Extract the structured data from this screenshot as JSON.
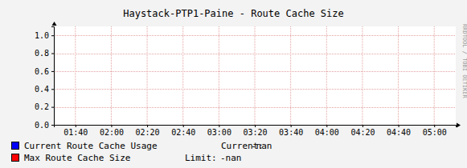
{
  "chart_data": {
    "type": "line",
    "title": "Haystack-PTP1-Paine - Route Cache Size",
    "watermark": "RRDTOOL / TOBI OETIKER",
    "x": [
      "01:40",
      "02:00",
      "02:20",
      "02:40",
      "03:00",
      "03:20",
      "03:40",
      "04:00",
      "04:20",
      "04:40",
      "05:00"
    ],
    "xlim": [
      "01:28",
      "05:12"
    ],
    "xticks": [
      "01:40",
      "02:00",
      "02:20",
      "02:40",
      "03:00",
      "03:20",
      "03:40",
      "04:00",
      "04:20",
      "04:40",
      "05:00"
    ],
    "ylim": [
      0,
      1.1
    ],
    "yticks": [
      {
        "value": 0,
        "label": "0.0"
      },
      0.2,
      0.4,
      0.6,
      0.8,
      {
        "value": 1,
        "label": "1.0"
      }
    ],
    "grid": true,
    "series": [
      {
        "name": "Current Route Cache Usage",
        "color": "#0000ff",
        "values": [
          null,
          null,
          null,
          null,
          null,
          null,
          null,
          null,
          null,
          null,
          null
        ],
        "stat_label": "Current:",
        "stat_value": "-nan"
      },
      {
        "name": "Max Route Cache Size",
        "color": "#ff0000",
        "values": [
          null,
          null,
          null,
          null,
          null,
          null,
          null,
          null,
          null,
          null,
          null
        ],
        "stat_label": "Limit:",
        "stat_value": "-nan"
      }
    ]
  }
}
